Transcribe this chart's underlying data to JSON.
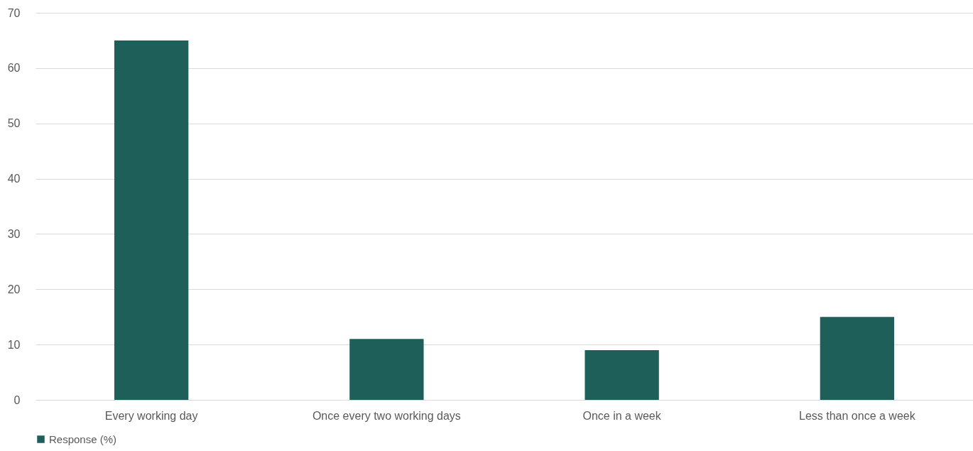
{
  "chart_data": {
    "type": "bar",
    "categories": [
      "Every working day",
      "Once every two working days",
      "Once in a week",
      "Less than once a week"
    ],
    "series": [
      {
        "name": "Response (%)",
        "color": "#1f5f5a",
        "values": [
          65,
          11,
          9,
          15
        ]
      }
    ],
    "ylim": [
      0,
      70
    ],
    "yticks": [
      0,
      10,
      20,
      30,
      40,
      50,
      60,
      70
    ],
    "grid": "y",
    "legend": "bottom"
  }
}
